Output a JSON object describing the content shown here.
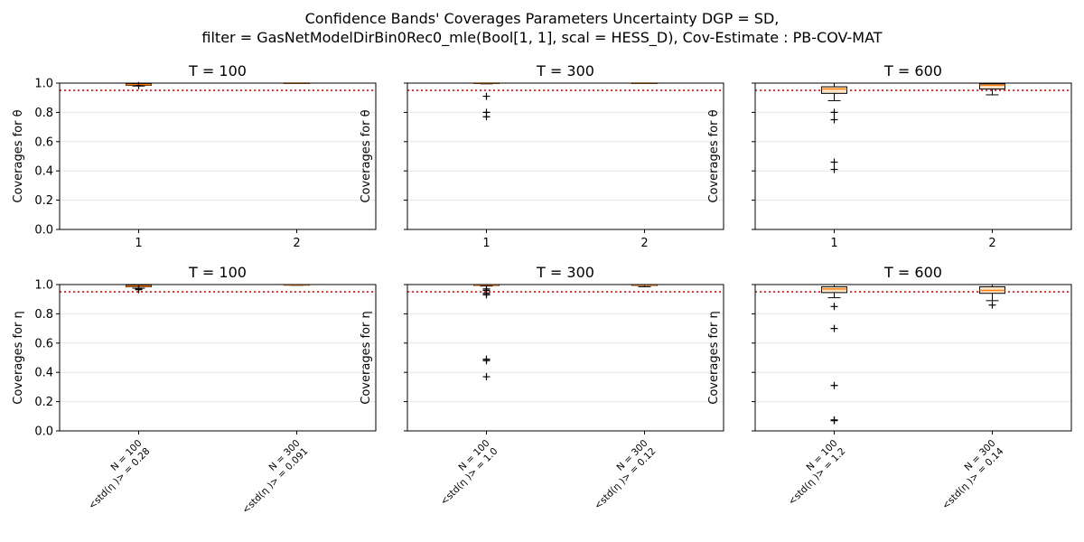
{
  "suptitle": [
    "Confidence Bands' Coverages Parameters Uncertainty DGP = SD,",
    "filter = GasNetModelDirBin0Rec0_mle(Bool[1, 1], scal = HESS_D), Cov-Estimate : PB-COV-MAT"
  ],
  "colors": {
    "reference_line": "#ff0000",
    "median": "#ff7f0e",
    "box_fill": "#fde5c8",
    "grid": "#e6e6e6"
  },
  "chart_data": [
    {
      "type": "box",
      "title": "T = 100",
      "ylabel": "Coverages for θ",
      "ylim": [
        0,
        1
      ],
      "yticks": [
        "0.0",
        "0.2",
        "0.4",
        "0.6",
        "0.8",
        "1.0"
      ],
      "reference_line": 0.95,
      "categories": [
        "1",
        "2"
      ],
      "xtick_rotated": false,
      "boxes": [
        {
          "q1": 0.985,
          "median": 0.99,
          "q3": 0.995,
          "whisker_low": 0.98,
          "whisker_high": 1.0,
          "outliers": [
            0.983
          ]
        },
        {
          "q1": 0.998,
          "median": 0.999,
          "q3": 1.0,
          "whisker_low": 0.997,
          "whisker_high": 1.0,
          "outliers": []
        }
      ]
    },
    {
      "type": "box",
      "title": "T = 300",
      "ylabel": "Coverages for θ",
      "ylim": [
        0,
        1
      ],
      "yticks": [],
      "reference_line": 0.95,
      "categories": [
        "1",
        "2"
      ],
      "xtick_rotated": false,
      "boxes": [
        {
          "q1": 0.997,
          "median": 0.999,
          "q3": 1.0,
          "whisker_low": 0.995,
          "whisker_high": 1.0,
          "outliers": [
            0.91,
            0.8,
            0.77
          ]
        },
        {
          "q1": 0.998,
          "median": 0.999,
          "q3": 1.0,
          "whisker_low": 0.997,
          "whisker_high": 1.0,
          "outliers": []
        }
      ]
    },
    {
      "type": "box",
      "title": "T = 600",
      "ylabel": "Coverages for θ",
      "ylim": [
        0,
        1
      ],
      "yticks": [],
      "reference_line": 0.95,
      "categories": [
        "1",
        "2"
      ],
      "xtick_rotated": false,
      "boxes": [
        {
          "q1": 0.93,
          "median": 0.96,
          "q3": 0.975,
          "whisker_low": 0.88,
          "whisker_high": 1.0,
          "outliers": [
            0.8,
            0.75,
            0.46,
            0.41
          ]
        },
        {
          "q1": 0.96,
          "median": 0.985,
          "q3": 0.995,
          "whisker_low": 0.92,
          "whisker_high": 1.0,
          "outliers": []
        }
      ]
    },
    {
      "type": "box",
      "title": "T = 100",
      "ylabel": "Coverages for η",
      "ylim": [
        0,
        1
      ],
      "yticks": [
        "0.0",
        "0.2",
        "0.4",
        "0.6",
        "0.8",
        "1.0"
      ],
      "reference_line": 0.95,
      "categories": [
        [
          "N = 100",
          "<std(η )> =  0.28"
        ],
        [
          "N = 300",
          "<std(η )> =  0.091"
        ]
      ],
      "xtick_rotated": true,
      "boxes": [
        {
          "q1": 0.985,
          "median": 0.99,
          "q3": 0.995,
          "whisker_low": 0.975,
          "whisker_high": 1.0,
          "outliers": [
            0.97,
            0.965
          ]
        },
        {
          "q1": 0.996,
          "median": 0.998,
          "q3": 1.0,
          "whisker_low": 0.995,
          "whisker_high": 1.0,
          "outliers": []
        }
      ]
    },
    {
      "type": "box",
      "title": "T = 300",
      "ylabel": "Coverages for η",
      "ylim": [
        0,
        1
      ],
      "yticks": [],
      "reference_line": 0.95,
      "categories": [
        [
          "N = 100",
          "<std(η )> =  1.0"
        ],
        [
          "N = 300",
          "<std(η )> =  0.12"
        ]
      ],
      "xtick_rotated": true,
      "boxes": [
        {
          "q1": 0.994,
          "median": 0.997,
          "q3": 1.0,
          "whisker_low": 0.99,
          "whisker_high": 1.0,
          "outliers": [
            0.97,
            0.96,
            0.94,
            0.93,
            0.49,
            0.48,
            0.37
          ]
        },
        {
          "q1": 0.994,
          "median": 0.997,
          "q3": 1.0,
          "whisker_low": 0.985,
          "whisker_high": 1.0,
          "outliers": []
        }
      ]
    },
    {
      "type": "box",
      "title": "T = 600",
      "ylabel": "Coverages for η",
      "ylim": [
        0,
        1
      ],
      "yticks": [],
      "reference_line": 0.95,
      "categories": [
        [
          "N = 100",
          "<std(η )> =  1.2"
        ],
        [
          "N = 300",
          "<std(η )> =  0.14"
        ]
      ],
      "xtick_rotated": true,
      "boxes": [
        {
          "q1": 0.945,
          "median": 0.97,
          "q3": 0.985,
          "whisker_low": 0.91,
          "whisker_high": 1.0,
          "outliers": [
            0.85,
            0.7,
            0.31,
            0.075,
            0.07
          ]
        },
        {
          "q1": 0.94,
          "median": 0.96,
          "q3": 0.985,
          "whisker_low": 0.89,
          "whisker_high": 1.0,
          "outliers": [
            0.86
          ]
        }
      ]
    }
  ]
}
